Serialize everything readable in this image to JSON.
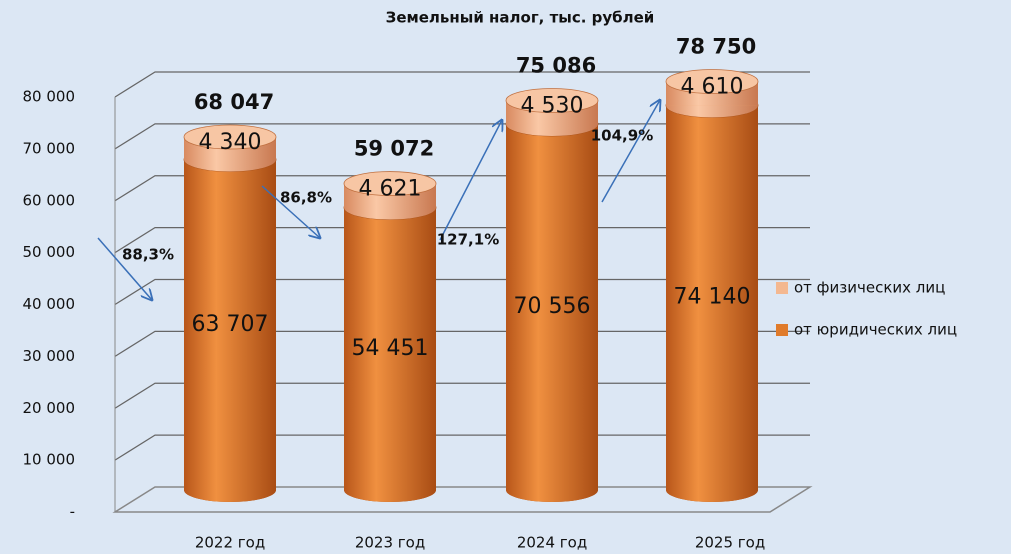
{
  "chart_data": {
    "type": "bar3d_stacked",
    "title": "Земельный налог, тыс. рублей",
    "categories": [
      "2022 год",
      "2023 год",
      "2024 год",
      "2025 год"
    ],
    "series": [
      {
        "name": "от юридических лиц",
        "color": "#e07b2a",
        "values": [
          63707,
          54451,
          70556,
          74140
        ],
        "value_labels": [
          "63 707",
          "54 451",
          "70 556",
          "74 140"
        ]
      },
      {
        "name": "от физических лиц",
        "color": "#f4b890",
        "values": [
          4340,
          4621,
          4530,
          4610
        ],
        "value_labels": [
          "4 340",
          "4 621",
          "4 530",
          "4 610"
        ]
      }
    ],
    "totals": [
      68047,
      59072,
      75086,
      78750
    ],
    "total_labels": [
      "68 047",
      "59 072",
      "75 086",
      "78 750"
    ],
    "annotations": [
      "88,3%",
      "86,8%",
      "127,1%",
      "104,9%"
    ],
    "ylim": [
      0,
      80000
    ],
    "yticks": [
      {
        "value": 0,
        "label": "-"
      },
      {
        "value": 10000,
        "label": "10 000"
      },
      {
        "value": 20000,
        "label": "20 000"
      },
      {
        "value": 30000,
        "label": "30 000"
      },
      {
        "value": 40000,
        "label": "40 000"
      },
      {
        "value": 50000,
        "label": "50 000"
      },
      {
        "value": 60000,
        "label": "60 000"
      },
      {
        "value": 70000,
        "label": "70 000"
      },
      {
        "value": 80000,
        "label": "80 000"
      }
    ],
    "grid": true,
    "legend": "right"
  }
}
